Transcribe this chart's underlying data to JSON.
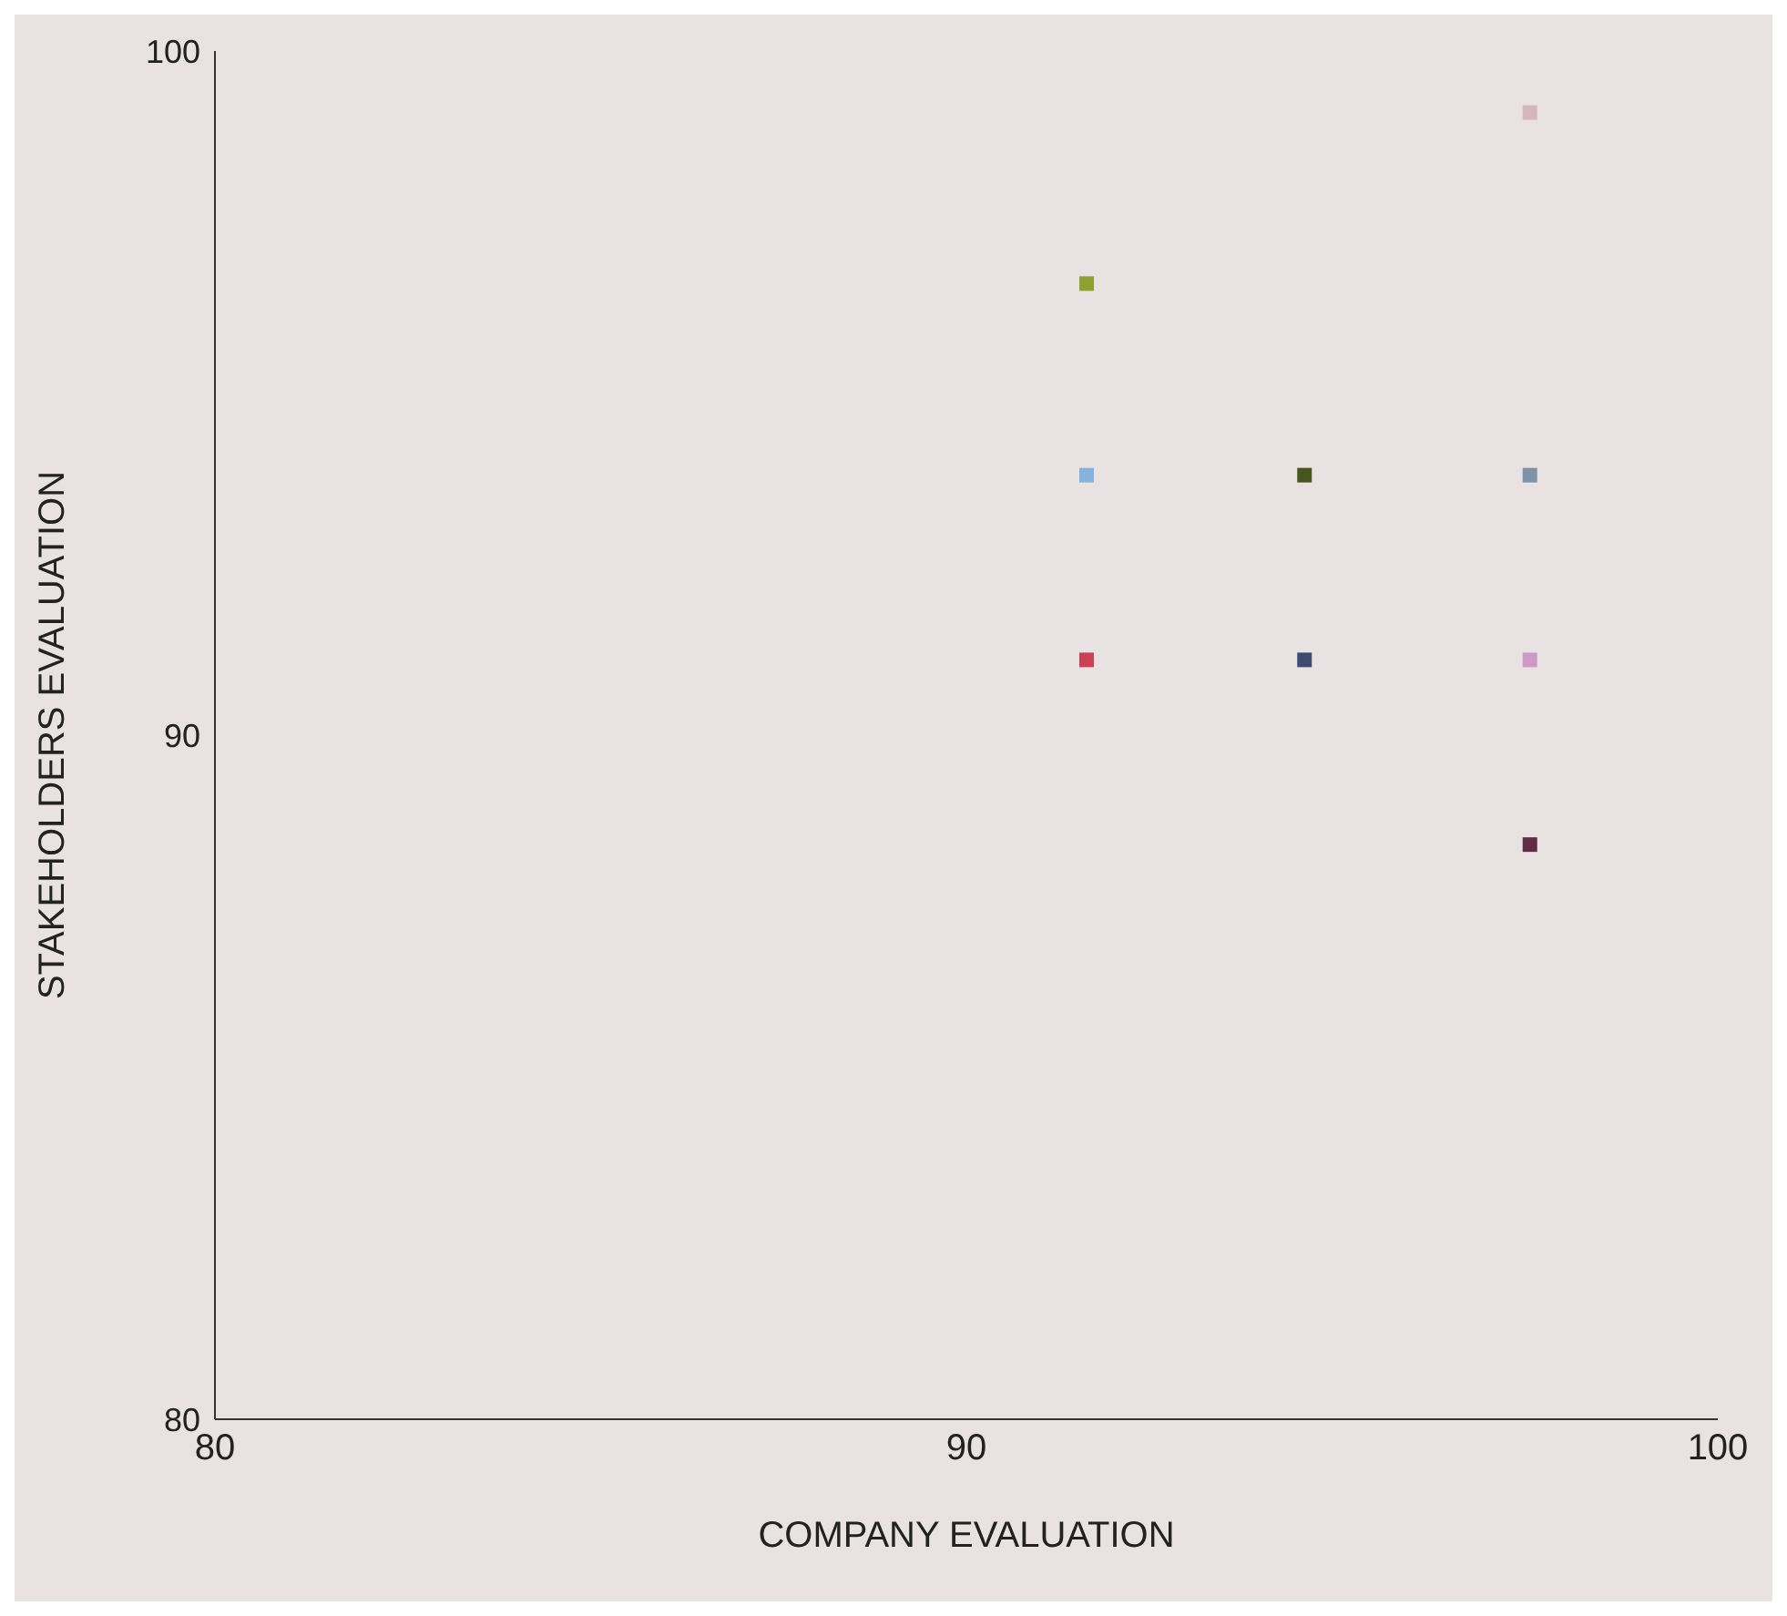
{
  "chart_data": {
    "type": "scatter",
    "xlabel": "COMPANY EVALUATION",
    "ylabel": "STAKEHOLDERS EVALUATION",
    "x": [
      91.6,
      91.6,
      91.6,
      94.5,
      94.5,
      97.5,
      97.5,
      97.5,
      97.5
    ],
    "values": [
      96.6,
      93.8,
      91.1,
      93.8,
      91.1,
      99.1,
      93.8,
      91.1,
      88.4
    ],
    "colors": [
      "#8fa12f",
      "#84b4dc",
      "#cb4053",
      "#47561f",
      "#3d4a72",
      "#d5b7bb",
      "#7e93a8",
      "#cf99c7",
      "#612d44"
    ],
    "marker": "square",
    "xlim": [
      80,
      100
    ],
    "xticks": [
      80,
      90,
      100
    ],
    "ylim": [
      80,
      100
    ],
    "yticks": [
      80,
      90,
      100
    ]
  }
}
